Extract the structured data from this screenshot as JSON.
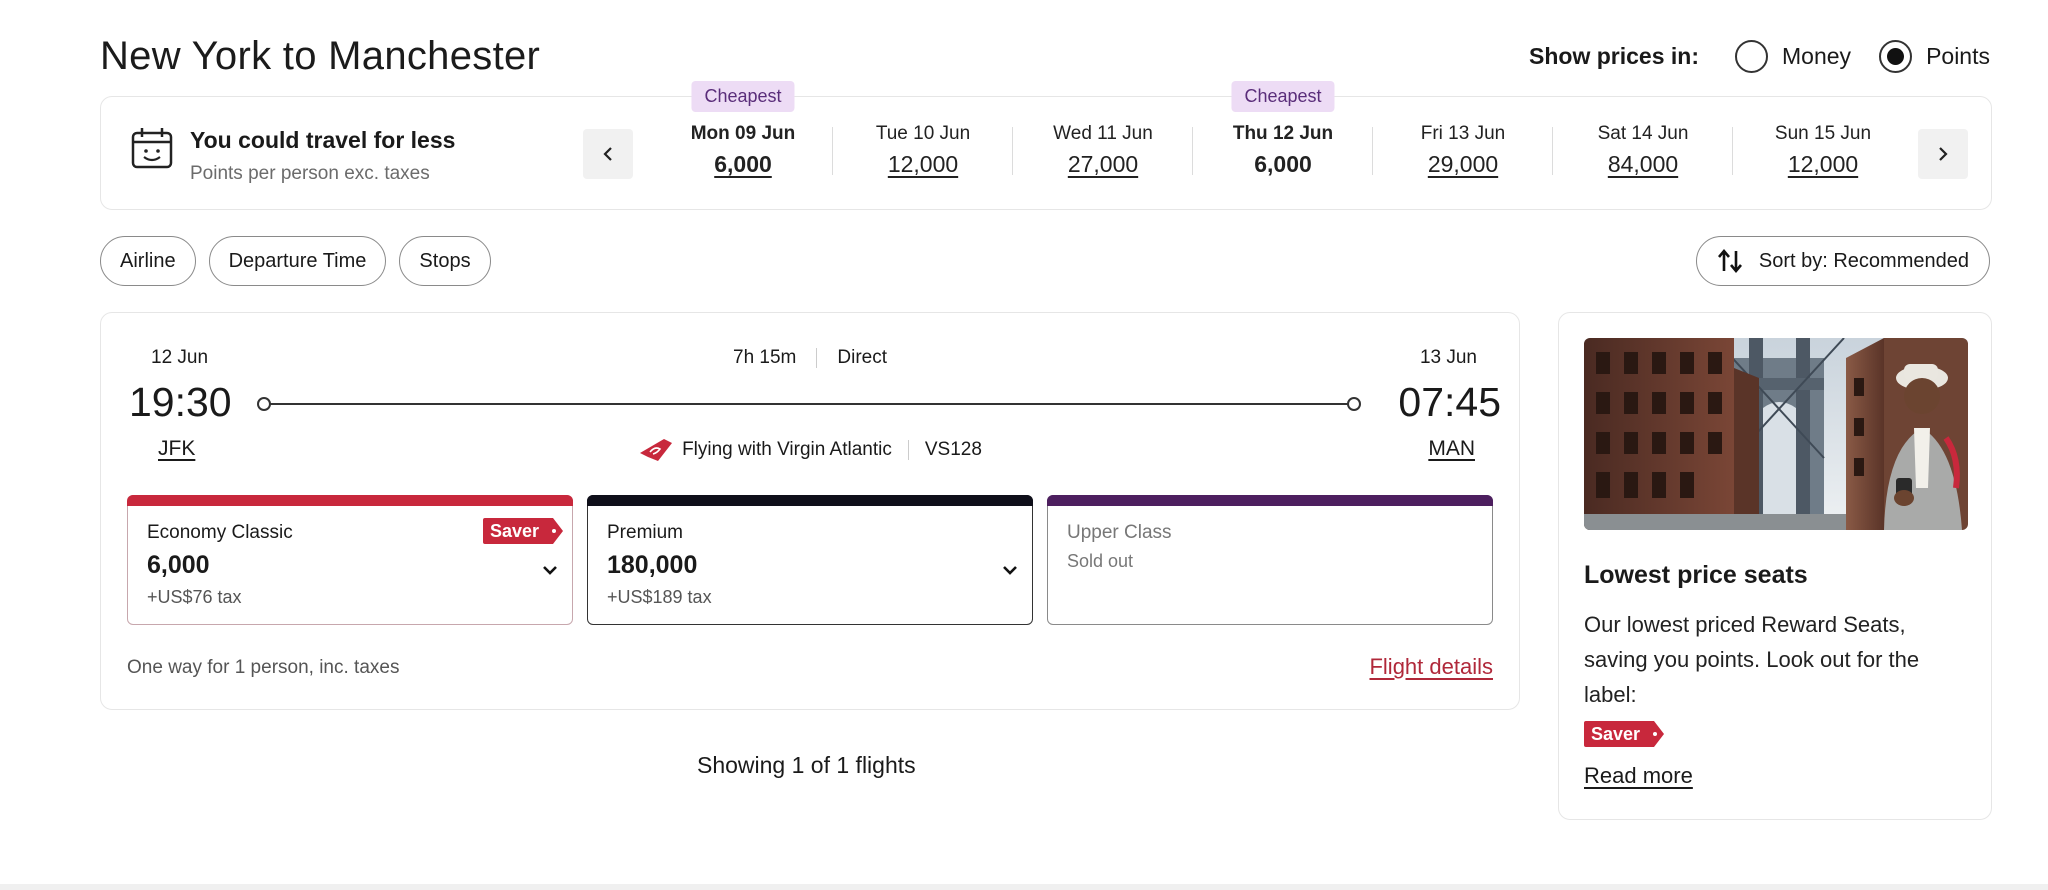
{
  "header": {
    "title": "New York to Manchester",
    "price_toggle": {
      "label": "Show prices in:",
      "options": [
        "Money",
        "Points"
      ],
      "selected": "Points"
    }
  },
  "date_bar": {
    "headline": "You could travel for less",
    "subline": "Points per person exc. taxes",
    "icons": {
      "calendar": "calendar-icon",
      "prev": "chevron-left-icon",
      "next": "chevron-right-icon"
    },
    "dates": [
      {
        "label": "Mon 09 Jun",
        "price": "6,000",
        "badge": "Cheapest",
        "bold": true,
        "selected": false
      },
      {
        "label": "Tue 10 Jun",
        "price": "12,000",
        "badge": "",
        "bold": false,
        "selected": false
      },
      {
        "label": "Wed 11 Jun",
        "price": "27,000",
        "badge": "",
        "bold": false,
        "selected": false
      },
      {
        "label": "Thu 12 Jun",
        "price": "6,000",
        "badge": "Cheapest",
        "bold": true,
        "selected": true
      },
      {
        "label": "Fri 13 Jun",
        "price": "29,000",
        "badge": "",
        "bold": false,
        "selected": false
      },
      {
        "label": "Sat 14 Jun",
        "price": "84,000",
        "badge": "",
        "bold": false,
        "selected": false
      },
      {
        "label": "Sun 15 Jun",
        "price": "12,000",
        "badge": "",
        "bold": false,
        "selected": false
      }
    ]
  },
  "filters": {
    "chips": [
      "Airline",
      "Departure Time",
      "Stops"
    ],
    "sort_label": "Sort by: Recommended"
  },
  "flight": {
    "departure": {
      "date": "12 Jun",
      "time": "19:30",
      "airport": "JFK"
    },
    "arrival": {
      "date": "13 Jun",
      "time": "07:45",
      "airport": "MAN"
    },
    "duration": "7h 15m",
    "stops": "Direct",
    "carrier": "Flying with Virgin Atlantic",
    "flight_number": "VS128",
    "fares": {
      "economy": {
        "name": "Economy Classic",
        "points": "6,000",
        "tax": "+US$76 tax",
        "tag": "Saver"
      },
      "premium": {
        "name": "Premium",
        "points": "180,000",
        "tax": "+US$189 tax"
      },
      "upper": {
        "name": "Upper Class",
        "status": "Sold out"
      }
    },
    "footnote": "One way for 1 person, inc. taxes",
    "details_link": "Flight details"
  },
  "results": {
    "showing": "Showing 1 of 1 flights"
  },
  "promo": {
    "title": "Lowest price seats",
    "body": "Our lowest priced Reward Seats, saving you points. Look out for the label:",
    "tag": "Saver",
    "link": "Read more"
  },
  "colors": {
    "accent_red": "#c8283c",
    "upper_purple": "#4d1f5f",
    "badge_lilac": "#eddcf5"
  }
}
